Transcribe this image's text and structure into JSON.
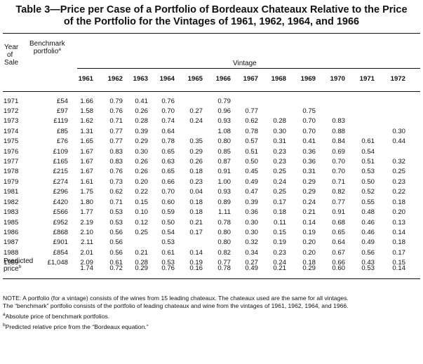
{
  "title_line1": "Table 3—Price per Case of a Portfolio of Bordeaux Chateaux Relative to the Price",
  "title_line2": "of the Portfolio for the Vintages of 1961, 1962, 1964, and 1966",
  "headers": {
    "year_l1": "Year",
    "year_l2": "of",
    "year_l3": "Sale",
    "bench_l1": "Benchmark",
    "bench_l2": "portfolio",
    "bench_sup": "a",
    "vintage": "Vintage"
  },
  "vintages": [
    "1961",
    "1962",
    "1963",
    "1964",
    "1965",
    "1966",
    "1967",
    "1968",
    "1969",
    "1970",
    "1971",
    "1972"
  ],
  "rows": [
    {
      "year": "1971",
      "bench": "£54",
      "cells": [
        "1.66",
        "0.79",
        "0.41",
        "0.76",
        "",
        "0.79",
        "",
        "",
        "",
        "",
        "",
        ""
      ]
    },
    {
      "year": "1972",
      "bench": "£97",
      "cells": [
        "1.58",
        "0.76",
        "0.26",
        "0.70",
        "0.27",
        "0.96",
        "0.77",
        "",
        "0.75",
        "",
        "",
        ""
      ]
    },
    {
      "year": "1973",
      "bench": "£119",
      "cells": [
        "1.62",
        "0.71",
        "0.28",
        "0.74",
        "0.24",
        "0.93",
        "0.62",
        "0.28",
        "0.70",
        "0.83",
        "",
        ""
      ]
    },
    {
      "year": "1974",
      "bench": "£85",
      "cells": [
        "1.31",
        "0.77",
        "0.39",
        "0.64",
        "",
        "1.08",
        "0.78",
        "0.30",
        "0.70",
        "0.88",
        "",
        "0.30"
      ]
    },
    {
      "year": "1975",
      "bench": "£76",
      "cells": [
        "1.65",
        "0.77",
        "0.29",
        "0.78",
        "0.35",
        "0.80",
        "0.57",
        "0.31",
        "0.41",
        "0.84",
        "0.61",
        "0.44"
      ]
    },
    {
      "year": "1976",
      "bench": "£109",
      "cells": [
        "1.67",
        "0.83",
        "0.30",
        "0.65",
        "0.29",
        "0.85",
        "0.51",
        "0.23",
        "0.36",
        "0.69",
        "0.54",
        ""
      ]
    },
    {
      "year": "1977",
      "bench": "£165",
      "cells": [
        "1.67",
        "0.83",
        "0.26",
        "0.63",
        "0.26",
        "0.87",
        "0.50",
        "0.23",
        "0.36",
        "0.70",
        "0.51",
        "0.32"
      ]
    },
    {
      "year": "1978",
      "bench": "£215",
      "cells": [
        "1.67",
        "0.76",
        "0.26",
        "0.65",
        "0.18",
        "0.91",
        "0.45",
        "0.25",
        "0.31",
        "0.70",
        "0.53",
        "0.25"
      ]
    },
    {
      "year": "1979",
      "bench": "£274",
      "cells": [
        "1.61",
        "0.73",
        "0.20",
        "0.66",
        "0.23",
        "1.00",
        "0.49",
        "0.24",
        "0.29",
        "0.71",
        "0.50",
        "0.23"
      ]
    },
    {
      "year": "1981",
      "bench": "£296",
      "cells": [
        "1.75",
        "0.62",
        "0.22",
        "0.70",
        "0.04",
        "0.93",
        "0.47",
        "0.25",
        "0.29",
        "0.82",
        "0.52",
        "0.22"
      ]
    },
    {
      "year": "1982",
      "bench": "£420",
      "cells": [
        "1.80",
        "0.71",
        "0.15",
        "0.60",
        "0.18",
        "0.89",
        "0.39",
        "0.17",
        "0.24",
        "0.77",
        "0.55",
        "0.18"
      ]
    },
    {
      "year": "1983",
      "bench": "£566",
      "cells": [
        "1.77",
        "0.53",
        "0.10",
        "0.59",
        "0.18",
        "1.11",
        "0.36",
        "0.18",
        "0.21",
        "0.91",
        "0.48",
        "0.20"
      ]
    },
    {
      "year": "1985",
      "bench": "£952",
      "cells": [
        "2.19",
        "0.53",
        "0.12",
        "0.50",
        "0.21",
        "0.78",
        "0.30",
        "0.11",
        "0.14",
        "0.68",
        "0.46",
        "0.13"
      ]
    },
    {
      "year": "1986",
      "bench": "£868",
      "cells": [
        "2.10",
        "0.56",
        "0.25",
        "0.54",
        "0.17",
        "0.80",
        "0.30",
        "0.15",
        "0.19",
        "0.65",
        "0.46",
        "0.14"
      ]
    },
    {
      "year": "1987",
      "bench": "£901",
      "cells": [
        "2.11",
        "0.56",
        "",
        "0.53",
        "",
        "0.80",
        "0.32",
        "0.19",
        "0.20",
        "0.64",
        "0.49",
        "0.18"
      ]
    },
    {
      "year": "1988",
      "bench": "£854",
      "cells": [
        "2.01",
        "0.56",
        "0.21",
        "0.61",
        "0.14",
        "0.82",
        "0.34",
        "0.23",
        "0.20",
        "0.67",
        "0.56",
        "0.17"
      ]
    },
    {
      "year": "1989",
      "bench": "£1,048",
      "cells": [
        "2.09",
        "0.61",
        "0.28",
        "0.53",
        "0.19",
        "0.77",
        "0.27",
        "0.24",
        "0.18",
        "0.66",
        "0.43",
        "0.15"
      ]
    }
  ],
  "predicted": {
    "label_l1": "Predicted",
    "label_l2": "price",
    "label_sup": "b",
    "cells": [
      "1.74",
      "0.72",
      "0.29",
      "0.76",
      "0.16",
      "0.78",
      "0.49",
      "0.21",
      "0.29",
      "0.60",
      "0.53",
      "0.14"
    ]
  },
  "notes": {
    "note_l1": "NOTE: A portfolio (for a vintage) consists of the wines from 15 leading chateaux. The chateaux used are the same for all vintages.",
    "note_l2": "The “benchmark” portfolio consists of the portfolio of leading chateaux and wine from the vintages of 1961, 1962, 1964, and 1966.",
    "fn_a_mark": "a",
    "fn_a": "Absolute price of benchmark portfolios.",
    "fn_b_mark": "b",
    "fn_b": "Predicted relative price from the “Bordeaux equation.”"
  }
}
